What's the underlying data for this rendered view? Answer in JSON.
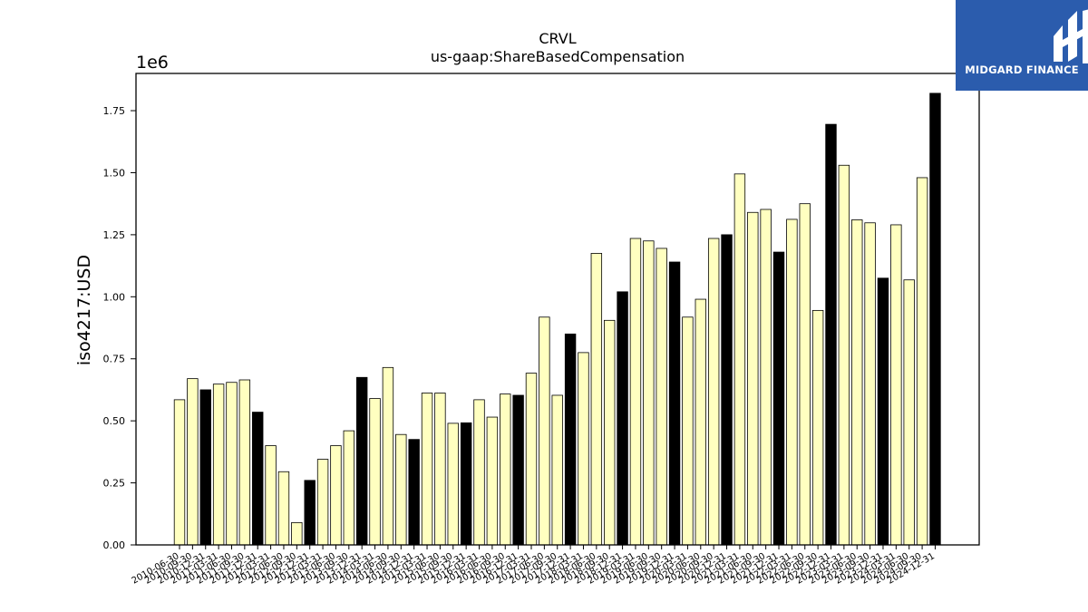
{
  "brand": {
    "name": "MIDGARD FINANCE",
    "color": "#2b5cad"
  },
  "chart_data": {
    "type": "bar",
    "title": "CRVL",
    "subtitle": "us-gaap:ShareBasedCompensation",
    "ylabel": "iso4217:USD",
    "xlabel": "",
    "y_multiplier_label": "1e6",
    "ylim": [
      0,
      1900000
    ],
    "yticks": [
      0,
      250000,
      500000,
      750000,
      1000000,
      1250000,
      1500000,
      1750000
    ],
    "ytick_labels": [
      "0.00",
      "0.25",
      "0.50",
      "0.75",
      "1.00",
      "1.25",
      "1.50",
      "1.75"
    ],
    "grid": false,
    "colors": {
      "light": "#ffffc0",
      "dark": "#000000",
      "edge": "#000000"
    },
    "categories": [
      "2010-06-30",
      "2010-09-30",
      "2010-12-31",
      "2011-03-31",
      "2011-06-30",
      "2011-09-30",
      "2011-12-31",
      "2012-03-31",
      "2012-06-30",
      "2012-09-30",
      "2012-12-31",
      "2013-03-31",
      "2013-06-30",
      "2013-09-30",
      "2013-12-31",
      "2014-03-31",
      "2014-06-30",
      "2014-09-30",
      "2014-12-31",
      "2015-03-31",
      "2015-06-30",
      "2015-09-30",
      "2015-12-31",
      "2016-03-31",
      "2016-06-30",
      "2016-09-30",
      "2016-12-31",
      "2017-03-31",
      "2017-06-30",
      "2017-09-30",
      "2017-12-31",
      "2018-03-31",
      "2018-06-30",
      "2018-09-30",
      "2018-12-31",
      "2019-03-31",
      "2019-06-30",
      "2019-09-30",
      "2019-12-31",
      "2020-03-31",
      "2020-06-30",
      "2020-09-30",
      "2020-12-31",
      "2021-03-31",
      "2021-06-30",
      "2021-09-30",
      "2021-12-31",
      "2022-03-31",
      "2022-06-30",
      "2022-09-30",
      "2022-12-31",
      "2023-03-31",
      "2023-06-30",
      "2023-09-30",
      "2023-12-31",
      "2024-03-31",
      "2024-06-30",
      "2024-09-30",
      "2024-12-31"
    ],
    "values": [
      585000,
      670000,
      625000,
      648000,
      655000,
      665000,
      535000,
      400000,
      295000,
      90000,
      260000,
      345000,
      400000,
      460000,
      675000,
      590000,
      715000,
      445000,
      425000,
      612000,
      612000,
      490000,
      492000,
      585000,
      515000,
      608000,
      603000,
      692000,
      918000,
      603000,
      850000,
      775000,
      1175000,
      905000,
      1020000,
      1235000,
      1225000,
      1195000,
      1140000,
      918000,
      990000,
      1235000,
      1250000,
      1495000,
      1340000,
      1352000,
      1180000,
      1312000,
      1375000,
      945000,
      1695000,
      1530000,
      1310000,
      1298000,
      1075000,
      1290000,
      1068000,
      1480000,
      1820000
    ],
    "highlight": [
      false,
      false,
      true,
      false,
      false,
      false,
      true,
      false,
      false,
      false,
      true,
      false,
      false,
      false,
      true,
      false,
      false,
      false,
      true,
      false,
      false,
      false,
      true,
      false,
      false,
      false,
      true,
      false,
      false,
      false,
      true,
      false,
      false,
      false,
      true,
      false,
      false,
      false,
      true,
      false,
      false,
      false,
      true,
      false,
      false,
      false,
      true,
      false,
      false,
      false,
      true,
      false,
      false,
      false,
      true,
      false,
      false,
      false,
      true
    ]
  }
}
